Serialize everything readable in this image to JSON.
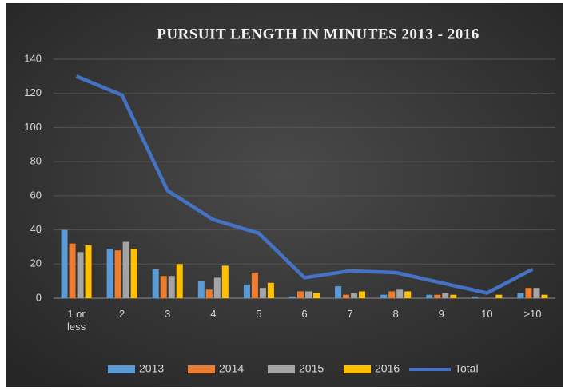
{
  "chart_data": {
    "type": "bar",
    "title": "PURSUIT LENGTH IN MINUTES  2013 - 2016",
    "categories": [
      "1 or less",
      "2",
      "3",
      "4",
      "5",
      "6",
      "7",
      "8",
      "9",
      "10",
      ">10"
    ],
    "series": [
      {
        "name": "2013",
        "type": "bar",
        "color": "#5b9bd5",
        "values": [
          40,
          29,
          17,
          10,
          8,
          1,
          7,
          2,
          2,
          1,
          3
        ]
      },
      {
        "name": "2014",
        "type": "bar",
        "color": "#ed7d31",
        "values": [
          32,
          28,
          13,
          5,
          15,
          4,
          2,
          4,
          2,
          0,
          6
        ]
      },
      {
        "name": "2015",
        "type": "bar",
        "color": "#a5a5a5",
        "values": [
          27,
          33,
          13,
          12,
          6,
          4,
          3,
          5,
          3,
          0,
          6
        ]
      },
      {
        "name": "2016",
        "type": "bar",
        "color": "#ffc000",
        "values": [
          31,
          29,
          20,
          19,
          9,
          3,
          4,
          4,
          2,
          2,
          2
        ]
      },
      {
        "name": "Total",
        "type": "line",
        "color": "#4472c4",
        "values": [
          130,
          119,
          63,
          46,
          38,
          12,
          16,
          15,
          9,
          3,
          17
        ]
      }
    ],
    "ylim": [
      0,
      140
    ],
    "yticks": [
      0,
      20,
      40,
      60,
      80,
      100,
      120,
      140
    ],
    "grid": true,
    "legend": "bottom"
  }
}
